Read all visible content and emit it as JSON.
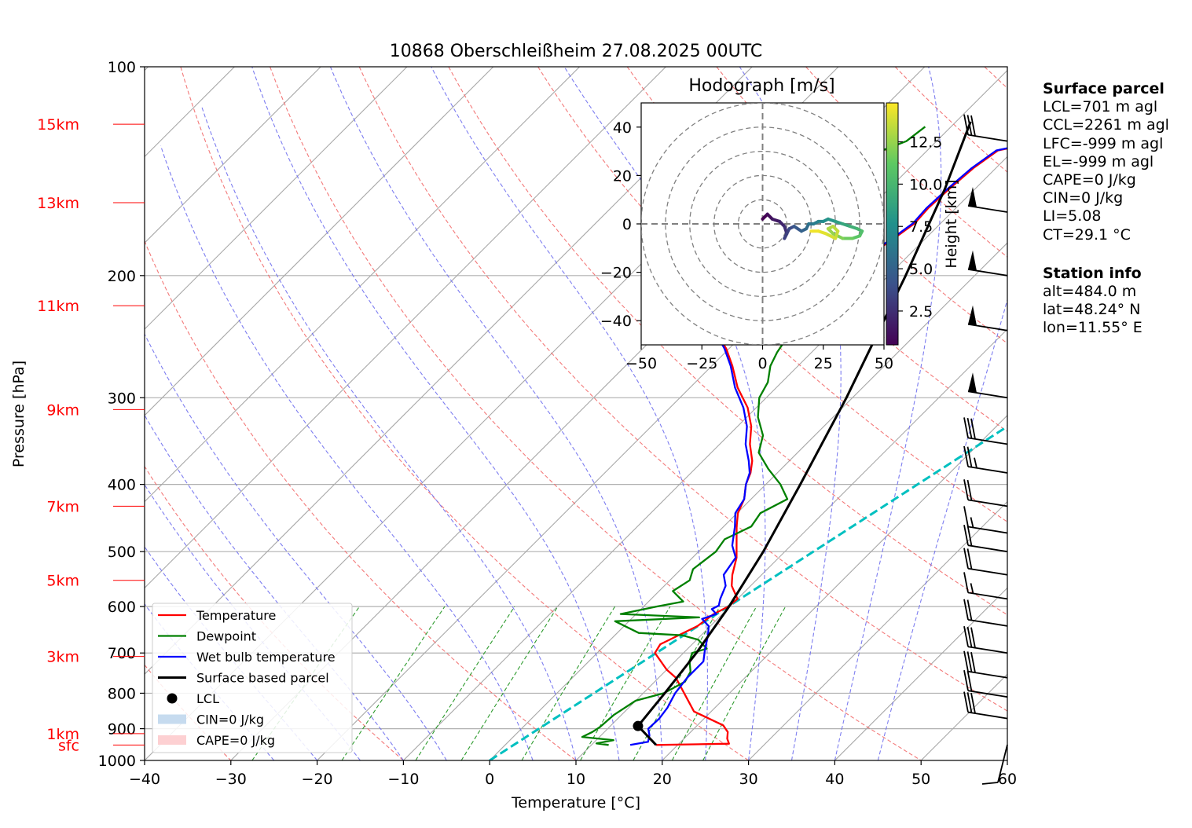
{
  "chart_data": {
    "type": "line",
    "title": "10868 Oberschleißheim 27.08.2025 00UTC",
    "xlabel": "Temperature [°C]",
    "ylabel": "Pressure [hPa]",
    "xlim": [
      -40,
      60
    ],
    "ylim": [
      1000,
      100
    ],
    "y_scale": "log",
    "grid": true,
    "x_ticks": [
      "−40",
      "−30",
      "−20",
      "−10",
      "0",
      "10",
      "20",
      "30",
      "40",
      "50",
      "60"
    ],
    "p_ticks": [
      {
        "p": 100,
        "label": "100"
      },
      {
        "p": 200,
        "label": "200"
      },
      {
        "p": 300,
        "label": "300"
      },
      {
        "p": 400,
        "label": "400"
      },
      {
        "p": 500,
        "label": "500"
      },
      {
        "p": 600,
        "label": "600"
      },
      {
        "p": 700,
        "label": "700"
      },
      {
        "p": 800,
        "label": "800"
      },
      {
        "p": 900,
        "label": "900"
      },
      {
        "p": 1000,
        "label": "1000"
      }
    ],
    "height_markers": [
      {
        "label": "15km",
        "p": 121
      },
      {
        "label": "13km",
        "p": 157
      },
      {
        "label": "11km",
        "p": 221
      },
      {
        "label": "9km",
        "p": 312
      },
      {
        "label": "7km",
        "p": 430
      },
      {
        "label": "5km",
        "p": 550
      },
      {
        "label": "3km",
        "p": 708
      },
      {
        "label": "1km",
        "p": 915
      },
      {
        "label": "sfc",
        "p": 950
      }
    ],
    "legend_position": "lower-left",
    "legend": [
      {
        "label": "Temperature",
        "color": "#ff0000",
        "kind": "line"
      },
      {
        "label": "Dewpoint",
        "color": "#008000",
        "kind": "line"
      },
      {
        "label": "Wet bulb temperature",
        "color": "#0000ff",
        "kind": "line"
      },
      {
        "label": "Surface based parcel",
        "color": "#000000",
        "kind": "line"
      },
      {
        "label": "LCL",
        "color": "#000000",
        "kind": "dot"
      },
      {
        "label": "CIN=0 J/kg",
        "color": "#c6dbef",
        "kind": "patch"
      },
      {
        "label": "CAPE=0 J/kg",
        "color": "#fdd0d2",
        "kind": "patch"
      }
    ],
    "series": [
      {
        "name": "Temperature",
        "color": "#ff0000",
        "points": [
          [
            17.5,
            950
          ],
          [
            25.8,
            946
          ],
          [
            25,
            930
          ],
          [
            24.3,
            910
          ],
          [
            23,
            890
          ],
          [
            18,
            850
          ],
          [
            12,
            760
          ],
          [
            10,
            740
          ],
          [
            6.7,
            700
          ],
          [
            6.3,
            680
          ],
          [
            8.5,
            640
          ],
          [
            9.0,
            615
          ],
          [
            9.8,
            600
          ],
          [
            10.0,
            585
          ],
          [
            7.8,
            560
          ],
          [
            6.6,
            540
          ],
          [
            5.1,
            510
          ],
          [
            3.7,
            490
          ],
          [
            1.5,
            460
          ],
          [
            0.1,
            440
          ],
          [
            -0.8,
            420
          ],
          [
            -2.3,
            400
          ],
          [
            -3.1,
            385
          ],
          [
            -4.3,
            370
          ],
          [
            -6.5,
            350
          ],
          [
            -8.4,
            330
          ],
          [
            -11.0,
            310
          ],
          [
            -14.5,
            290
          ],
          [
            -17.6,
            270
          ],
          [
            -20.3,
            255
          ],
          [
            -23.0,
            243
          ],
          [
            -24.0,
            236
          ],
          [
            -22.4,
            232
          ],
          [
            -18.0,
            226
          ],
          [
            -17.2,
            215
          ],
          [
            -16.4,
            205
          ],
          [
            -16.6,
            195
          ],
          [
            -15.3,
            190
          ],
          [
            -14.2,
            183
          ],
          [
            -13.6,
            176
          ],
          [
            -13.0,
            168
          ],
          [
            -13.2,
            160
          ],
          [
            -13.0,
            150
          ],
          [
            -12.6,
            140
          ],
          [
            -11.8,
            132
          ],
          [
            -8.7,
            129
          ],
          [
            -7.0,
            125
          ],
          [
            -4.5,
            122
          ],
          [
            -2.5,
            120
          ],
          [
            -3.0,
            119
          ]
        ]
      },
      {
        "name": "Dewpoint",
        "color": "#008000",
        "points": [
          [
            12.0,
            950
          ],
          [
            10.4,
            945
          ],
          [
            12.0,
            935
          ],
          [
            8.0,
            925
          ],
          [
            8.6,
            910
          ],
          [
            8.9,
            895
          ],
          [
            9.1,
            860
          ],
          [
            10.0,
            820
          ],
          [
            12.4,
            800
          ],
          [
            13.5,
            770
          ],
          [
            13.0,
            745
          ],
          [
            11.7,
            720
          ],
          [
            11.0,
            700
          ],
          [
            12.2,
            690
          ],
          [
            10.2,
            670
          ],
          [
            7.8,
            660
          ],
          [
            2.5,
            655
          ],
          [
            -1.6,
            630
          ],
          [
            7.7,
            622
          ],
          [
            -1.8,
            615
          ],
          [
            1.5,
            600
          ],
          [
            4.0,
            590
          ],
          [
            1.6,
            570
          ],
          [
            2.3,
            550
          ],
          [
            1.4,
            530
          ],
          [
            2.0,
            500
          ],
          [
            1.6,
            480
          ],
          [
            3.2,
            460
          ],
          [
            2.7,
            440
          ],
          [
            4.2,
            420
          ],
          [
            1.7,
            400
          ],
          [
            -1.5,
            380
          ],
          [
            -4.5,
            360
          ],
          [
            -6.0,
            340
          ],
          [
            -8.7,
            320
          ],
          [
            -10.8,
            300
          ],
          [
            -11.6,
            285
          ],
          [
            -13.2,
            270
          ],
          [
            -14.0,
            258
          ],
          [
            -14.6,
            245
          ],
          [
            -15.5,
            235
          ],
          [
            -16.0,
            224
          ],
          [
            -31.2,
            222
          ],
          [
            -26.2,
            218
          ],
          [
            -25.5,
            212
          ],
          [
            -27.4,
            205
          ],
          [
            -27.5,
            195
          ],
          [
            -26.8,
            186
          ],
          [
            -28.5,
            178
          ],
          [
            -29.5,
            168
          ],
          [
            -27.0,
            155
          ],
          [
            -26.5,
            145
          ],
          [
            -25.2,
            132
          ],
          [
            -23.5,
            128
          ],
          [
            -23.0,
            122
          ]
        ]
      },
      {
        "name": "Wet bulb temperature",
        "color": "#0000ff",
        "points": [
          [
            14.5,
            950
          ],
          [
            16.2,
            940
          ],
          [
            15.6,
            920
          ],
          [
            14.7,
            900
          ],
          [
            14.8,
            870
          ],
          [
            14.5,
            840
          ],
          [
            13.7,
            800
          ],
          [
            13.3,
            760
          ],
          [
            13.3,
            720
          ],
          [
            12.0,
            690
          ],
          [
            10.8,
            660
          ],
          [
            9.8,
            640
          ],
          [
            8.2,
            625
          ],
          [
            9.3,
            615
          ],
          [
            8.2,
            605
          ],
          [
            8.6,
            598
          ],
          [
            8.0,
            585
          ],
          [
            7.1,
            560
          ],
          [
            5.6,
            540
          ],
          [
            5.0,
            510
          ],
          [
            3.2,
            490
          ],
          [
            1.3,
            460
          ],
          [
            -0.2,
            440
          ],
          [
            -0.8,
            420
          ],
          [
            -2.3,
            400
          ],
          [
            -3.2,
            385
          ],
          [
            -4.7,
            370
          ],
          [
            -7.0,
            350
          ],
          [
            -8.9,
            330
          ],
          [
            -11.5,
            310
          ],
          [
            -14.8,
            290
          ],
          [
            -17.8,
            270
          ],
          [
            -20.5,
            255
          ],
          [
            -23.1,
            243
          ],
          [
            -24.0,
            236
          ],
          [
            -22.4,
            232
          ],
          [
            -18.0,
            226
          ],
          [
            -17.2,
            215
          ],
          [
            -16.4,
            205
          ],
          [
            -16.8,
            195
          ],
          [
            -15.6,
            190
          ],
          [
            -14.4,
            183
          ],
          [
            -13.8,
            176
          ],
          [
            -13.2,
            168
          ],
          [
            -13.4,
            160
          ],
          [
            -13.2,
            150
          ],
          [
            -12.8,
            140
          ],
          [
            -12.0,
            132
          ],
          [
            -8.9,
            129
          ],
          [
            -7.2,
            125
          ],
          [
            -4.8,
            122
          ],
          [
            -3.0,
            120
          ],
          [
            -3.3,
            119
          ]
        ]
      },
      {
        "name": "Surface based parcel",
        "color": "#000000",
        "points": [
          [
            17.5,
            950
          ],
          [
            13.2,
            892
          ],
          [
            12.5,
            800
          ],
          [
            11.5,
            700
          ],
          [
            9.9,
            600
          ],
          [
            7.5,
            500
          ],
          [
            4.0,
            400
          ],
          [
            -0.7,
            300
          ],
          [
            -8.0,
            200
          ],
          [
            -13.5,
            150
          ],
          [
            -18.3,
            120
          ]
        ]
      }
    ],
    "ccl_line": {
      "color": "#00c0c0",
      "points": [
        [
          0,
          1000
        ],
        [
          44.2,
          100
        ]
      ]
    },
    "lcl": {
      "t": 13.2,
      "p": 892
    },
    "hodograph": {
      "title": "Hodograph [m/s]",
      "xlim": [
        -50,
        50
      ],
      "ylim": [
        -50,
        50
      ],
      "x_ticks": [
        "−50",
        "−25",
        "0",
        "25",
        "50"
      ],
      "y_ticks": [
        {
          "v": 40,
          "label": "40"
        },
        {
          "v": 20,
          "label": "20"
        },
        {
          "v": 0,
          "label": "0"
        },
        {
          "v": -20,
          "label": "−20"
        },
        {
          "v": -40,
          "label": "−40"
        }
      ],
      "ring_radii": [
        10,
        20,
        30,
        40,
        50
      ],
      "colorbar_label": "Height [km]",
      "colorbar_ticks": [
        {
          "v": 2.5,
          "label": "2.5"
        },
        {
          "v": 5.0,
          "label": "5.0"
        },
        {
          "v": 7.5,
          "label": "7.5"
        },
        {
          "v": 10.0,
          "label": "10.0"
        },
        {
          "v": 12.5,
          "label": "12.5"
        }
      ],
      "colorbar_range": [
        0.5,
        14.8
      ],
      "trace": [
        {
          "u": 0,
          "v": 2,
          "h": 0.5
        },
        {
          "u": 2,
          "v": 4,
          "h": 1.0
        },
        {
          "u": 4,
          "v": 2,
          "h": 1.5
        },
        {
          "u": 7,
          "v": 1,
          "h": 2.0
        },
        {
          "u": 9,
          "v": -1,
          "h": 2.5
        },
        {
          "u": 10,
          "v": -4,
          "h": 3.0
        },
        {
          "u": 9,
          "v": -6,
          "h": 3.3
        },
        {
          "u": 11,
          "v": -2,
          "h": 3.8
        },
        {
          "u": 13,
          "v": -1,
          "h": 4.5
        },
        {
          "u": 16,
          "v": -3,
          "h": 5.0
        },
        {
          "u": 18,
          "v": -2,
          "h": 5.5
        },
        {
          "u": 19,
          "v": 0,
          "h": 6.0
        },
        {
          "u": 21,
          "v": 0,
          "h": 6.5
        },
        {
          "u": 23,
          "v": 1,
          "h": 7.0
        },
        {
          "u": 25,
          "v": 1,
          "h": 7.5
        },
        {
          "u": 27,
          "v": 2,
          "h": 8.0
        },
        {
          "u": 30,
          "v": 1,
          "h": 8.5
        },
        {
          "u": 33,
          "v": 0,
          "h": 9.0
        },
        {
          "u": 36,
          "v": -1,
          "h": 9.5
        },
        {
          "u": 39,
          "v": -2,
          "h": 10.0
        },
        {
          "u": 41,
          "v": -3,
          "h": 10.5
        },
        {
          "u": 40,
          "v": -5,
          "h": 11.0
        },
        {
          "u": 37,
          "v": -6,
          "h": 11.5
        },
        {
          "u": 33,
          "v": -6,
          "h": 12.0
        },
        {
          "u": 29,
          "v": -4,
          "h": 12.5
        },
        {
          "u": 27,
          "v": -2,
          "h": 13.0
        },
        {
          "u": 29,
          "v": -1,
          "h": 13.3
        },
        {
          "u": 31,
          "v": -3,
          "h": 13.6
        },
        {
          "u": 30,
          "v": -6,
          "h": 13.9
        },
        {
          "u": 26,
          "v": -4,
          "h": 14.2
        },
        {
          "u": 23,
          "v": -3,
          "h": 14.5
        },
        {
          "u": 20,
          "v": -3,
          "h": 14.8
        }
      ]
    },
    "wind_barbs": [
      {
        "p": 128,
        "flags": 0,
        "full": 3,
        "half": 0
      },
      {
        "p": 162,
        "flags": 1,
        "full": 0,
        "half": 0
      },
      {
        "p": 200,
        "flags": 1,
        "full": 0,
        "half": 0
      },
      {
        "p": 240,
        "flags": 1,
        "full": 0,
        "half": 0
      },
      {
        "p": 300,
        "flags": 1,
        "full": 0,
        "half": 0
      },
      {
        "p": 350,
        "flags": 0,
        "full": 3,
        "half": 0
      },
      {
        "p": 385,
        "flags": 0,
        "full": 2,
        "half": 1
      },
      {
        "p": 430,
        "flags": 0,
        "full": 2,
        "half": 0
      },
      {
        "p": 470,
        "flags": 0,
        "full": 1,
        "half": 1
      },
      {
        "p": 500,
        "flags": 0,
        "full": 2,
        "half": 0
      },
      {
        "p": 540,
        "flags": 0,
        "full": 2,
        "half": 0
      },
      {
        "p": 585,
        "flags": 0,
        "full": 1,
        "half": 1
      },
      {
        "p": 640,
        "flags": 0,
        "full": 2,
        "half": 0
      },
      {
        "p": 700,
        "flags": 0,
        "full": 3,
        "half": 0
      },
      {
        "p": 760,
        "flags": 0,
        "full": 3,
        "half": 0
      },
      {
        "p": 810,
        "flags": 0,
        "full": 2,
        "half": 0
      },
      {
        "p": 870,
        "flags": 0,
        "full": 3,
        "half": 0
      }
    ]
  },
  "sidebar": {
    "surface_title": "Surface parcel",
    "lcl": "LCL=701 m agl",
    "ccl": "CCL=2261 m agl",
    "lfc": "LFC=-999 m agl",
    "el": "EL=-999 m agl",
    "cape": "CAPE=0 J/kg",
    "cin": "CIN=0 J/kg",
    "li": "LI=5.08",
    "ct": "CT=29.1 °C",
    "station_title": "Station info",
    "alt": "alt=484.0 m",
    "lat": "lat=48.24° N",
    "lon": "lon=11.55° E"
  }
}
